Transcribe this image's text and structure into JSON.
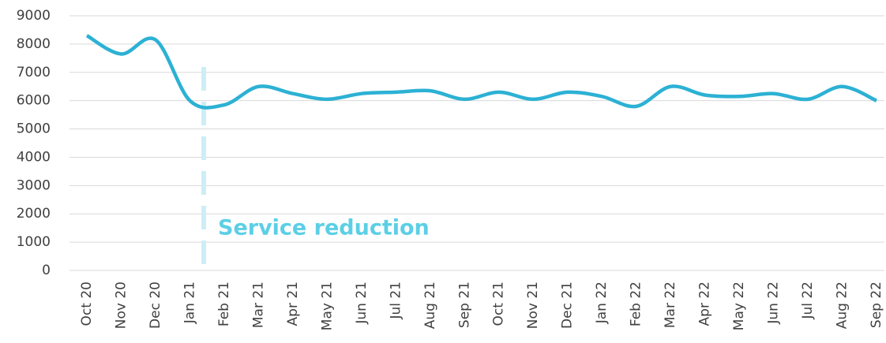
{
  "chart_data": {
    "type": "line",
    "categories": [
      "Oct 20",
      "Nov 20",
      "Dec 20",
      "Jan 21",
      "Feb 21",
      "Mar 21",
      "Apr 21",
      "May 21",
      "Jun 21",
      "Jul 21",
      "Aug 21",
      "Sep 21",
      "Oct 21",
      "Nov 21",
      "Dec 21",
      "Jan 22",
      "Feb 22",
      "Mar 22",
      "Apr 22",
      "May 22",
      "Jun 22",
      "Jul 22",
      "Aug 22",
      "Sep 22"
    ],
    "series": [
      {
        "color": "#2cb1d4",
        "values": [
          8300,
          7650,
          8150,
          6000,
          5850,
          6500,
          6250,
          6050,
          6250,
          6300,
          6350,
          6050,
          6300,
          6050,
          6300,
          6150,
          5800,
          6500,
          6200,
          6150,
          6250,
          6050,
          6500,
          6000
        ]
      }
    ],
    "ylim": [
      0,
      9000
    ],
    "yticks": [
      0,
      1000,
      2000,
      3000,
      4000,
      5000,
      6000,
      7000,
      8000,
      9000
    ],
    "grid": true,
    "annotations": [
      {
        "text": "Service reduction",
        "color": "#5ccfe6"
      }
    ]
  }
}
